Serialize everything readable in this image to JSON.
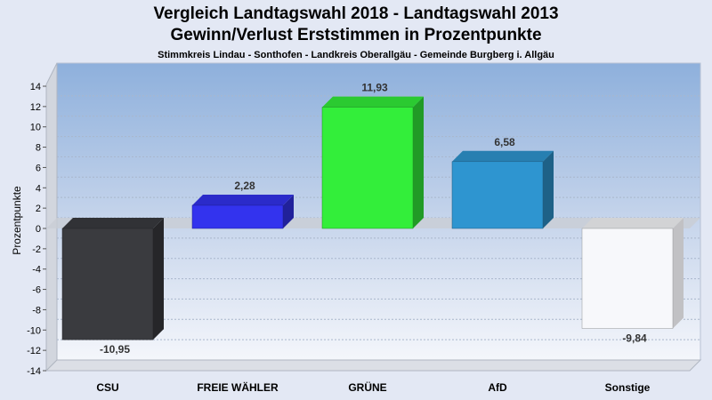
{
  "header": {
    "title_line1": "Vergleich Landtagswahl 2018 - Landtagswahl 2013",
    "title_line2": "Gewinn/Verlust Erststimmen in Prozentpunkte",
    "subtitle": "Stimmkreis Lindau - Sonthofen - Landkreis Oberallgäu - Gemeinde Burgberg i. Allgäu"
  },
  "chart_data": {
    "type": "bar",
    "title": "Vergleich Landtagswahl 2018 - Landtagswahl 2013 / Gewinn/Verlust Erststimmen in Prozentpunkte",
    "subtitle": "Stimmkreis Lindau - Sonthofen - Landkreis Oberallgäu - Gemeinde Burgberg i. Allgäu",
    "xlabel": "",
    "ylabel": "Prozentpunkte",
    "ylim": [
      -14,
      14
    ],
    "yticks": [
      14,
      12,
      10,
      8,
      6,
      4,
      2,
      0,
      -2,
      -4,
      -6,
      -8,
      -10,
      -12,
      -14
    ],
    "categories": [
      "CSU",
      "FREIE WÄHLER",
      "GRÜNE",
      "AfD",
      "Sonstige"
    ],
    "values": [
      -10.95,
      2.28,
      11.93,
      6.58,
      -9.84
    ],
    "value_labels": [
      "-10,95",
      "2,28",
      "11,93",
      "6,58",
      "-9,84"
    ],
    "colors": [
      "#3a3b3f",
      "#3333ee",
      "#33ee3a",
      "#2e95d0",
      "#f7f8fb"
    ],
    "grid": true,
    "legend": "none"
  }
}
